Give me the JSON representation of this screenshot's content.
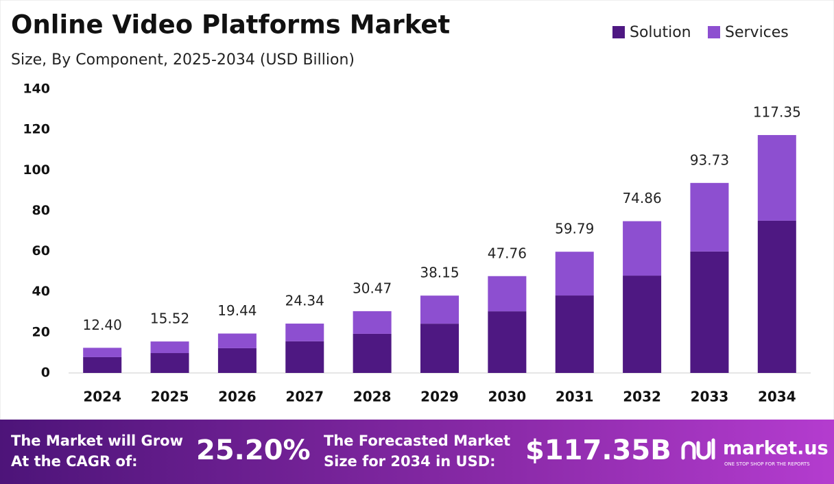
{
  "chart_data": {
    "type": "stacked-bar",
    "title": "Online Video Platforms Market",
    "subtitle": "Size, By Component, 2025-2034 (USD Billion)",
    "categories": [
      "2024",
      "2025",
      "2026",
      "2027",
      "2028",
      "2029",
      "2030",
      "2031",
      "2032",
      "2033",
      "2034"
    ],
    "series": [
      {
        "name": "Solution",
        "color": "#4e1882",
        "values": [
          7.8,
          9.8,
          12.2,
          15.6,
          19.3,
          24.3,
          30.4,
          38.2,
          48.0,
          59.9,
          75.1
        ]
      },
      {
        "name": "Services",
        "color": "#8d4fd0",
        "values": [
          4.6,
          5.72,
          7.24,
          8.74,
          11.17,
          13.85,
          17.36,
          21.59,
          26.86,
          33.83,
          42.25
        ]
      }
    ],
    "totals": [
      12.4,
      15.52,
      19.44,
      24.34,
      30.47,
      38.15,
      47.76,
      59.79,
      74.86,
      93.73,
      117.35
    ],
    "totals_labels": [
      "12.40",
      "15.52",
      "19.44",
      "24.34",
      "30.47",
      "38.15",
      "47.76",
      "59.79",
      "74.86",
      "93.73",
      "117.35"
    ],
    "ylim": [
      0,
      140
    ],
    "yticks": [
      0,
      20,
      40,
      60,
      80,
      100,
      120,
      140
    ],
    "grid": false,
    "legend": "top-right"
  },
  "footer": {
    "cagr_text": [
      "The Market will Grow",
      "At the CAGR of:"
    ],
    "cagr_value": "25.20%",
    "forecast_text": [
      "The Forecasted Market",
      "Size for 2034 in USD:"
    ],
    "forecast_value": "$117.35B",
    "brand": "market.us",
    "tagline": "ONE STOP SHOP FOR THE REPORTS"
  }
}
